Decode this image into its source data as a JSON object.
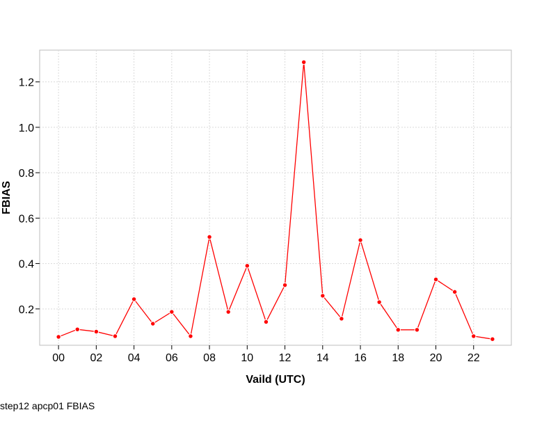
{
  "caption": "step12 apcp01 FBIAS",
  "chart_data": {
    "type": "line",
    "title": "",
    "xlabel": "Vaild (UTC)",
    "ylabel": "FBIAS",
    "xlim": [
      -1,
      24
    ],
    "ylim": [
      0.04,
      1.34
    ],
    "grid": true,
    "x_ticks": [
      "00",
      "02",
      "04",
      "06",
      "08",
      "10",
      "12",
      "14",
      "16",
      "18",
      "20",
      "22"
    ],
    "x_tick_values": [
      0,
      2,
      4,
      6,
      8,
      10,
      12,
      14,
      16,
      18,
      20,
      22
    ],
    "y_ticks": [
      "0.2",
      "0.4",
      "0.6",
      "0.8",
      "1.0",
      "1.2"
    ],
    "y_tick_values": [
      0.2,
      0.4,
      0.6,
      0.8,
      1.0,
      1.2
    ],
    "series": [
      {
        "color": "#ff0000",
        "x": [
          0,
          1,
          2,
          3,
          4,
          5,
          6,
          7,
          8,
          9,
          10,
          11,
          12,
          13,
          14,
          15,
          16,
          17,
          18,
          19,
          20,
          21,
          22,
          23
        ],
        "values": [
          0.077,
          0.11,
          0.1,
          0.08,
          0.243,
          0.135,
          0.187,
          0.08,
          0.517,
          0.187,
          0.39,
          0.143,
          0.305,
          1.287,
          0.258,
          0.157,
          0.503,
          0.23,
          0.108,
          0.108,
          0.33,
          0.275,
          0.08,
          0.067
        ]
      }
    ]
  }
}
